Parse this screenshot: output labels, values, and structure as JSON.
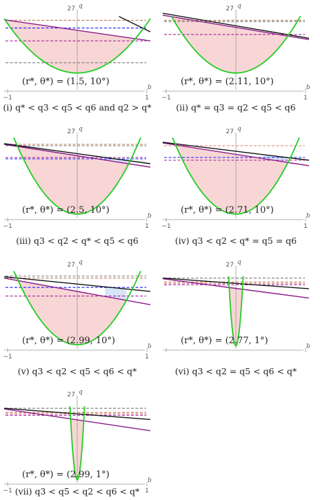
{
  "colors": {
    "parabola": "#22cc22",
    "fill": "#f8d6d6",
    "purple": "#8a1a8a",
    "black": "#111111",
    "blue_dash": "#1a1aff",
    "purple_dash": "#a0209a",
    "orange_dash": "#c07a4a",
    "gray_dash": "#777777",
    "pink_dash": "#e07a7a",
    "blue_fill": "#d8e4f8"
  },
  "panels": [
    {
      "axis_top_label": "27",
      "axis_q_label": "q",
      "axis_b_label": "b",
      "tick_left": "−1",
      "tick_right": "1",
      "param_label": "(r*, θ*) = (1.5, 10°)",
      "caption": "(i) q* < q3 < q5 < q6 and q2 > q*",
      "chart_data": {
        "type": "line",
        "curves": {
          "parabola": {
            "vertex_y": -0.78,
            "width": 1.1
          },
          "purple_line": {
            "y_at_left": 0.05,
            "y_at_right": -0.28
          },
          "black_line": {
            "x_start": 0.6,
            "y_start": 0.1,
            "x_end": 1.05,
            "y_end": -0.14
          }
        },
        "dashed_levels": [
          {
            "color": "orange_dash",
            "y": 0.04
          },
          {
            "color": "blue_dash",
            "y": -0.08
          },
          {
            "color": "purple_dash",
            "y": -0.28
          },
          {
            "color": "gray_dash",
            "y": -0.62
          }
        ]
      }
    },
    {
      "axis_top_label": "27",
      "axis_q_label": "q",
      "axis_b_label": "b",
      "tick_left": "−1",
      "tick_right": "1",
      "param_label": "(r*, θ*) = (2.11, 10°)",
      "caption": "(ii) q* = q3 = q2 < q5 < q6",
      "chart_data": {
        "type": "line",
        "curves": {
          "parabola": {
            "vertex_y": -0.78,
            "width": 0.95
          },
          "purple_line": {
            "y_at_left": 0.12,
            "y_at_right": -0.26
          },
          "black_line": {
            "y_at_left": 0.15,
            "y_at_right": -0.24
          }
        },
        "dashed_levels": [
          {
            "color": "orange_dash",
            "y": 0.04
          },
          {
            "color": "gray_dash",
            "y": 0.02
          },
          {
            "color": "purple_dash",
            "y": -0.18
          }
        ]
      }
    },
    {
      "axis_top_label": "27",
      "axis_q_label": "q",
      "axis_b_label": "b",
      "tick_left": "−1",
      "tick_right": "1",
      "param_label": "(r*, θ*) = (2.5, 10°)",
      "caption": "(iii) q3 < q2 < q* < q5 < q6",
      "chart_data": {
        "type": "line",
        "curves": {
          "parabola": {
            "vertex_y": -0.98,
            "width": 0.92
          },
          "purple_line": {
            "y_at_left": 0.03,
            "y_at_right": -0.3
          },
          "black_line": {
            "y_at_left": 0.04,
            "y_at_right": -0.25
          }
        },
        "dashed_levels": [
          {
            "color": "orange_dash",
            "y": 0.03
          },
          {
            "color": "gray_dash",
            "y": 0.01
          },
          {
            "color": "purple_dash",
            "y": -0.16
          },
          {
            "color": "blue_dash",
            "y": -0.18
          }
        ],
        "blue_fill": true
      }
    },
    {
      "axis_top_label": "27",
      "axis_q_label": "q",
      "axis_b_label": "b",
      "tick_left": "−1",
      "tick_right": "1",
      "param_label": "(r*, θ*) = (2.71, 10°)",
      "caption": "(iv) q3 < q2 < q* = q5 = q6",
      "chart_data": {
        "type": "line",
        "curves": {
          "parabola": {
            "vertex_y": -0.98,
            "width": 0.92
          },
          "purple_line": {
            "y_at_left": 0.05,
            "y_at_right": -0.28
          },
          "black_line": {
            "y_at_left": 0.06,
            "y_at_right": -0.2
          }
        },
        "dashed_levels": [
          {
            "color": "pink_dash",
            "y": 0.01
          },
          {
            "color": "blue_dash",
            "y": -0.16
          },
          {
            "color": "purple_dash",
            "y": -0.2
          }
        ],
        "blue_fill": true
      }
    },
    {
      "axis_top_label": "27",
      "axis_q_label": "q",
      "axis_b_label": "b",
      "tick_left": "−1",
      "tick_right": "1",
      "param_label": "(r*, θ*) = (2.99, 10°)",
      "caption": "(v) q3 < q2 < q5 < q6 < q*",
      "chart_data": {
        "type": "line",
        "curves": {
          "parabola": {
            "vertex_y": -0.98,
            "width": 0.92
          },
          "purple_line": {
            "y_at_left": 0.02,
            "y_at_right": -0.38
          },
          "black_line": {
            "y_at_left": 0.04,
            "y_at_right": -0.18
          }
        },
        "dashed_levels": [
          {
            "color": "gray_dash",
            "y": 0.05
          },
          {
            "color": "orange_dash",
            "y": 0.02
          },
          {
            "color": "blue_dash",
            "y": -0.12
          },
          {
            "color": "purple_dash",
            "y": -0.25
          }
        ],
        "blue_fill": true
      }
    },
    {
      "axis_top_label": "27",
      "axis_q_label": "q",
      "axis_b_label": "b",
      "tick_left": "",
      "tick_right": "",
      "param_label": "(r*, θ*) = (2.77, 1°)",
      "caption": "(vi) q3 < q2 = q5 < q6 < q*",
      "chart_data": {
        "type": "line",
        "curves": {
          "parabola": {
            "vertex_y": -1.0,
            "width": 0.11
          },
          "purple_line": {
            "y_at_left": 0.01,
            "y_at_right": -0.28
          },
          "black_line": {
            "y_at_left": 0.02,
            "y_at_right": -0.14
          }
        },
        "dashed_levels": [
          {
            "color": "gray_dash",
            "y": 0.02
          },
          {
            "color": "orange_dash",
            "y": -0.04
          },
          {
            "color": "pink_dash",
            "y": -0.06
          },
          {
            "color": "purple_dash",
            "y": -0.08
          }
        ]
      }
    },
    {
      "axis_top_label": "27",
      "axis_q_label": "q",
      "axis_b_label": "b",
      "tick_left": "−1",
      "tick_right": "1",
      "param_label": "(r*, θ*) = (2.99, 1°)",
      "caption": "(vii) q3 < q5 < q2 < q6 < q*",
      "chart_data": {
        "type": "line",
        "curves": {
          "parabola": {
            "vertex_y": -1.0,
            "width": 0.11
          },
          "purple_line": {
            "y_at_left": 0.01,
            "y_at_right": -0.3
          },
          "black_line": {
            "y_at_left": 0.02,
            "y_at_right": -0.14
          }
        },
        "dashed_levels": [
          {
            "color": "gray_dash",
            "y": 0.02
          },
          {
            "color": "orange_dash",
            "y": -0.04
          },
          {
            "color": "pink_dash",
            "y": -0.06
          },
          {
            "color": "purple_dash",
            "y": -0.08
          }
        ]
      }
    }
  ]
}
